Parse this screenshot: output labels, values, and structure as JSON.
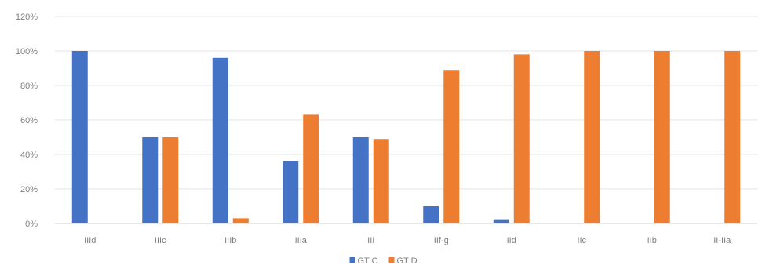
{
  "chart_data": {
    "type": "bar",
    "categories": [
      "IIId",
      "IIIc",
      "IIIb",
      "IIIa",
      "III",
      "IIf-g",
      "IId",
      "IIc",
      "IIb",
      "II-IIa"
    ],
    "series": [
      {
        "name": "GT C",
        "values": [
          100,
          50,
          96,
          36,
          50,
          10,
          2,
          0,
          0,
          0
        ],
        "color": "#4472c4"
      },
      {
        "name": "GT D",
        "values": [
          0,
          50,
          3,
          63,
          49,
          89,
          98,
          100,
          100,
          100
        ],
        "color": "#ed7d31"
      }
    ],
    "yticks": [
      "0%",
      "20%",
      "40%",
      "60%",
      "80%",
      "100%",
      "120%"
    ],
    "ylim": [
      0,
      120
    ],
    "grid": true,
    "legend": "bottom-center"
  }
}
